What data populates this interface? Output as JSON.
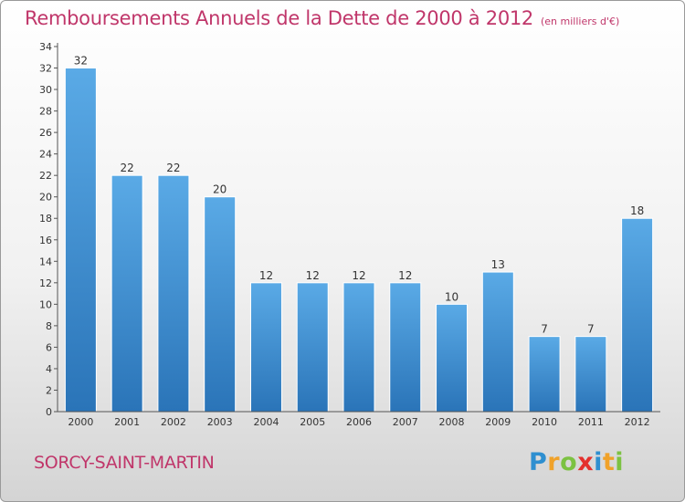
{
  "chart_data": {
    "type": "bar",
    "title": "Remboursements Annuels de la Dette de 2000 à 2012",
    "unit_label": "(en milliers d'€)",
    "categories": [
      "2000",
      "2001",
      "2002",
      "2003",
      "2004",
      "2005",
      "2006",
      "2007",
      "2008",
      "2009",
      "2010",
      "2011",
      "2012"
    ],
    "values": [
      32,
      22,
      22,
      20,
      12,
      12,
      12,
      12,
      10,
      13,
      7,
      7,
      18
    ],
    "ylim": [
      0,
      34
    ],
    "yticks": [
      0,
      2,
      4,
      6,
      8,
      10,
      12,
      14,
      16,
      18,
      20,
      22,
      24,
      26,
      28,
      30,
      32,
      34
    ],
    "xlabel": "",
    "ylabel": "",
    "grid": false,
    "bar_color": "#4f9fdc"
  },
  "footer": {
    "commune": "SORCY-SAINT-MARTIN",
    "logo": {
      "p": "P",
      "r": "r",
      "o": "o",
      "x": "x",
      "i1": "i",
      "t": "t",
      "i2": "i"
    }
  },
  "colors": {
    "title": "#c0366a",
    "accent_blue": "#2e8fd0"
  }
}
